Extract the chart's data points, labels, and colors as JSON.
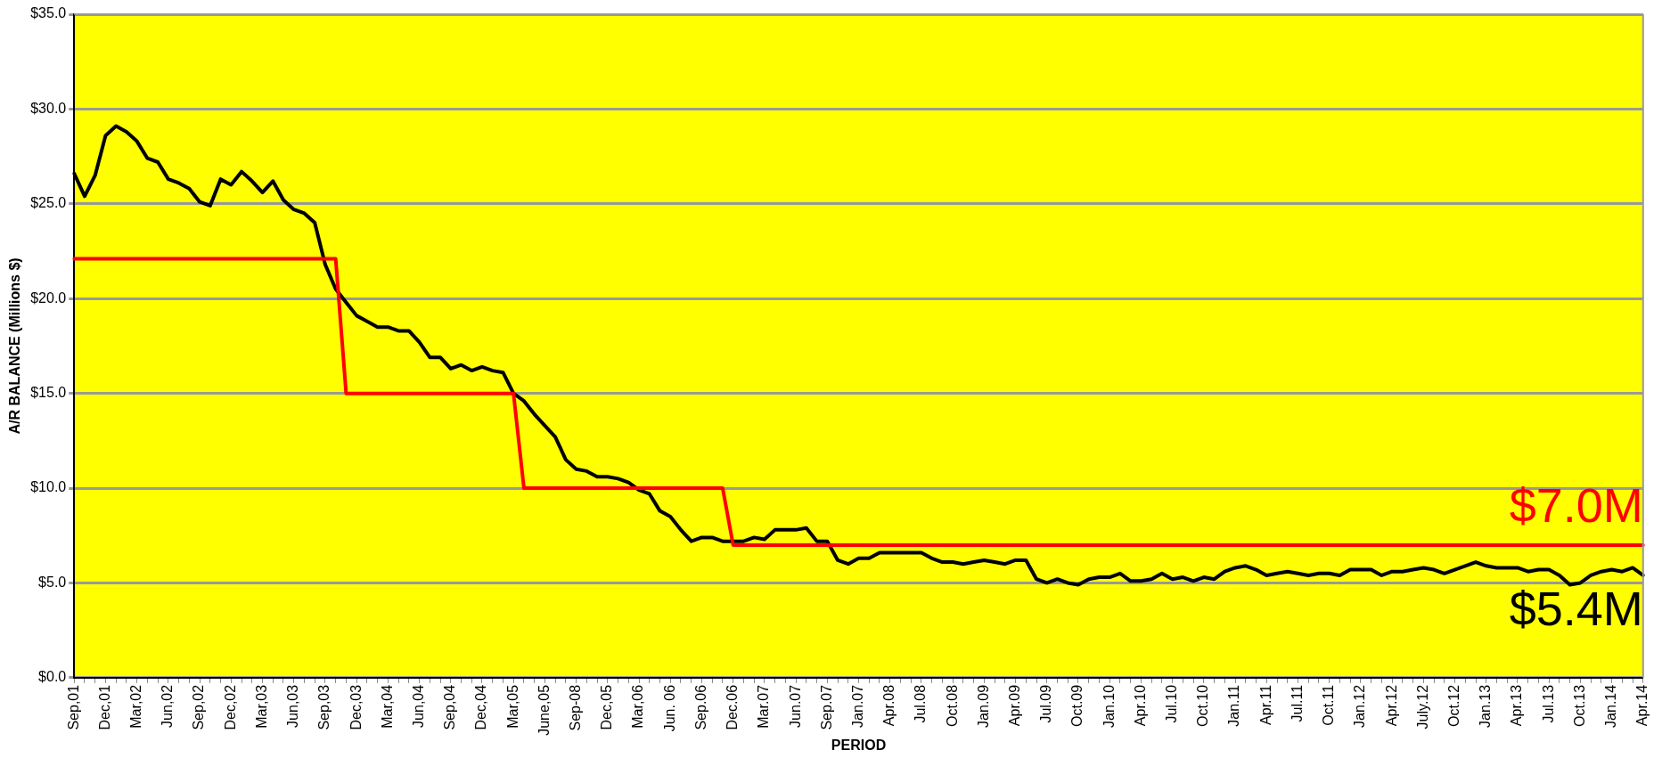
{
  "chart_data": {
    "type": "line",
    "xlabel": "PERIOD",
    "ylabel": "A/R BALANCE (Millions $)",
    "categories": [
      "Sep,01",
      null,
      null,
      "Dec,01",
      null,
      null,
      "Mar,02",
      null,
      null,
      "Jun,02",
      null,
      null,
      "Sep,02",
      null,
      null,
      "Dec,02",
      null,
      null,
      "Mar,03",
      null,
      null,
      "Jun,03",
      null,
      null,
      "Sep,03",
      null,
      null,
      "Dec,03",
      null,
      null,
      "Mar,04",
      null,
      null,
      "Jun,04",
      null,
      null,
      "Sep,04",
      null,
      null,
      "Dec,04",
      null,
      null,
      "Mar,05",
      null,
      null,
      "June,05",
      null,
      null,
      "Sep-08",
      null,
      null,
      "Dec,05",
      null,
      null,
      "Mar,06",
      null,
      null,
      "Jun. 06",
      null,
      null,
      "Sep.06",
      null,
      null,
      "Dec.06",
      null,
      null,
      "Mar.07",
      null,
      null,
      "Jun.07",
      null,
      null,
      "Sep.07",
      null,
      null,
      "Jan.07",
      null,
      null,
      "Apr.08",
      null,
      null,
      "Jul.08",
      null,
      null,
      "Oct.08",
      null,
      null,
      "Jan.09",
      null,
      null,
      "Apr.09",
      null,
      null,
      "Jul.09",
      null,
      null,
      "Oct.09",
      null,
      null,
      "Jan.10",
      null,
      null,
      "Apr.10",
      null,
      null,
      "Jul.10",
      null,
      null,
      "Oct.10",
      null,
      null,
      "Jan.11",
      null,
      null,
      "Apr.11",
      null,
      null,
      "Jul.11",
      null,
      null,
      "Oct.11",
      null,
      null,
      "Jan.12",
      null,
      null,
      "Apr.12",
      null,
      null,
      "July.12",
      null,
      null,
      "Oct.12",
      null,
      null,
      "Jan.13",
      null,
      null,
      "Apr.13",
      null,
      null,
      "Jul.13",
      null,
      null,
      "Oct.13",
      null,
      null,
      "Jan.14",
      null,
      null,
      "Apr.14"
    ],
    "series": [
      {
        "color": "#ff0000",
        "values": [
          22.1,
          22.1,
          22.1,
          22.1,
          22.1,
          22.1,
          22.1,
          22.1,
          22.1,
          22.1,
          22.1,
          22.1,
          22.1,
          22.1,
          22.1,
          22.1,
          22.1,
          22.1,
          22.1,
          22.1,
          22.1,
          22.1,
          22.1,
          22.1,
          22.1,
          22.1,
          15,
          15,
          15,
          15,
          15,
          15,
          15,
          15,
          15,
          15,
          15,
          15,
          15,
          15,
          15,
          15,
          15,
          10,
          10,
          10,
          10,
          10,
          10,
          10,
          10,
          10,
          10,
          10,
          10,
          10,
          10,
          10,
          10,
          10,
          10,
          10,
          10,
          7,
          7,
          7,
          7,
          7,
          7,
          7,
          7,
          7,
          7,
          7,
          7,
          7,
          7,
          7,
          7,
          7,
          7,
          7,
          7,
          7,
          7,
          7,
          7,
          7,
          7,
          7,
          7,
          7,
          7,
          7,
          7,
          7,
          7,
          7,
          7,
          7,
          7,
          7,
          7,
          7,
          7,
          7,
          7,
          7,
          7,
          7,
          7,
          7,
          7,
          7,
          7,
          7,
          7,
          7,
          7,
          7,
          7,
          7,
          7,
          7,
          7,
          7,
          7,
          7,
          7,
          7,
          7,
          7,
          7,
          7,
          7,
          7,
          7,
          7,
          7,
          7,
          7,
          7,
          7,
          7,
          7,
          7,
          7,
          7,
          7,
          7,
          7
        ]
      },
      {
        "color": "#000000",
        "values": [
          26.6,
          25.4,
          26.5,
          28.6,
          29.1,
          28.8,
          28.3,
          27.4,
          27.2,
          26.3,
          26.1,
          25.8,
          25.1,
          24.9,
          26.3,
          26.0,
          26.7,
          26.2,
          25.6,
          26.2,
          25.2,
          24.7,
          24.5,
          24.0,
          21.8,
          20.5,
          19.8,
          19.1,
          18.8,
          18.5,
          18.5,
          18.3,
          18.3,
          17.7,
          16.9,
          16.9,
          16.3,
          16.5,
          16.2,
          16.4,
          16.2,
          16.1,
          15.0,
          14.6,
          13.9,
          13.3,
          12.7,
          11.5,
          11.0,
          10.9,
          10.6,
          10.6,
          10.5,
          10.3,
          9.9,
          9.7,
          8.8,
          8.5,
          7.8,
          7.2,
          7.4,
          7.4,
          7.2,
          7.2,
          7.2,
          7.4,
          7.3,
          7.8,
          7.8,
          7.8,
          7.9,
          7.2,
          7.2,
          6.2,
          6.0,
          6.3,
          6.3,
          6.6,
          6.6,
          6.6,
          6.6,
          6.6,
          6.3,
          6.1,
          6.1,
          6.0,
          6.1,
          6.2,
          6.1,
          6.0,
          6.2,
          6.2,
          5.2,
          5.0,
          5.2,
          5.0,
          4.9,
          5.2,
          5.3,
          5.3,
          5.5,
          5.1,
          5.1,
          5.2,
          5.5,
          5.2,
          5.3,
          5.1,
          5.3,
          5.2,
          5.6,
          5.8,
          5.9,
          5.7,
          5.4,
          5.5,
          5.6,
          5.5,
          5.4,
          5.5,
          5.5,
          5.4,
          5.7,
          5.7,
          5.7,
          5.4,
          5.6,
          5.6,
          5.7,
          5.8,
          5.7,
          5.5,
          5.7,
          5.9,
          6.1,
          5.9,
          5.8,
          5.8,
          5.8,
          5.6,
          5.7,
          5.7,
          5.4,
          4.9,
          5.0,
          5.4,
          5.6,
          5.7,
          5.6,
          5.8,
          5.4
        ]
      }
    ],
    "ylim": [
      0,
      35
    ],
    "yticks": [
      {
        "value": 0,
        "label": "$0.0"
      },
      {
        "value": 5,
        "label": "$5.0"
      },
      {
        "value": 10,
        "label": "$10.0"
      },
      {
        "value": 15,
        "label": "$15.0"
      },
      {
        "value": 20,
        "label": "$20.0"
      },
      {
        "value": 25,
        "label": "$25.0"
      },
      {
        "value": 30,
        "label": "$30.0"
      },
      {
        "value": 35,
        "label": "$35.0"
      }
    ],
    "grid": "y",
    "marker": "none",
    "line_style": "solid",
    "annotations": [
      "$7.0M",
      "$5.4M"
    ]
  }
}
